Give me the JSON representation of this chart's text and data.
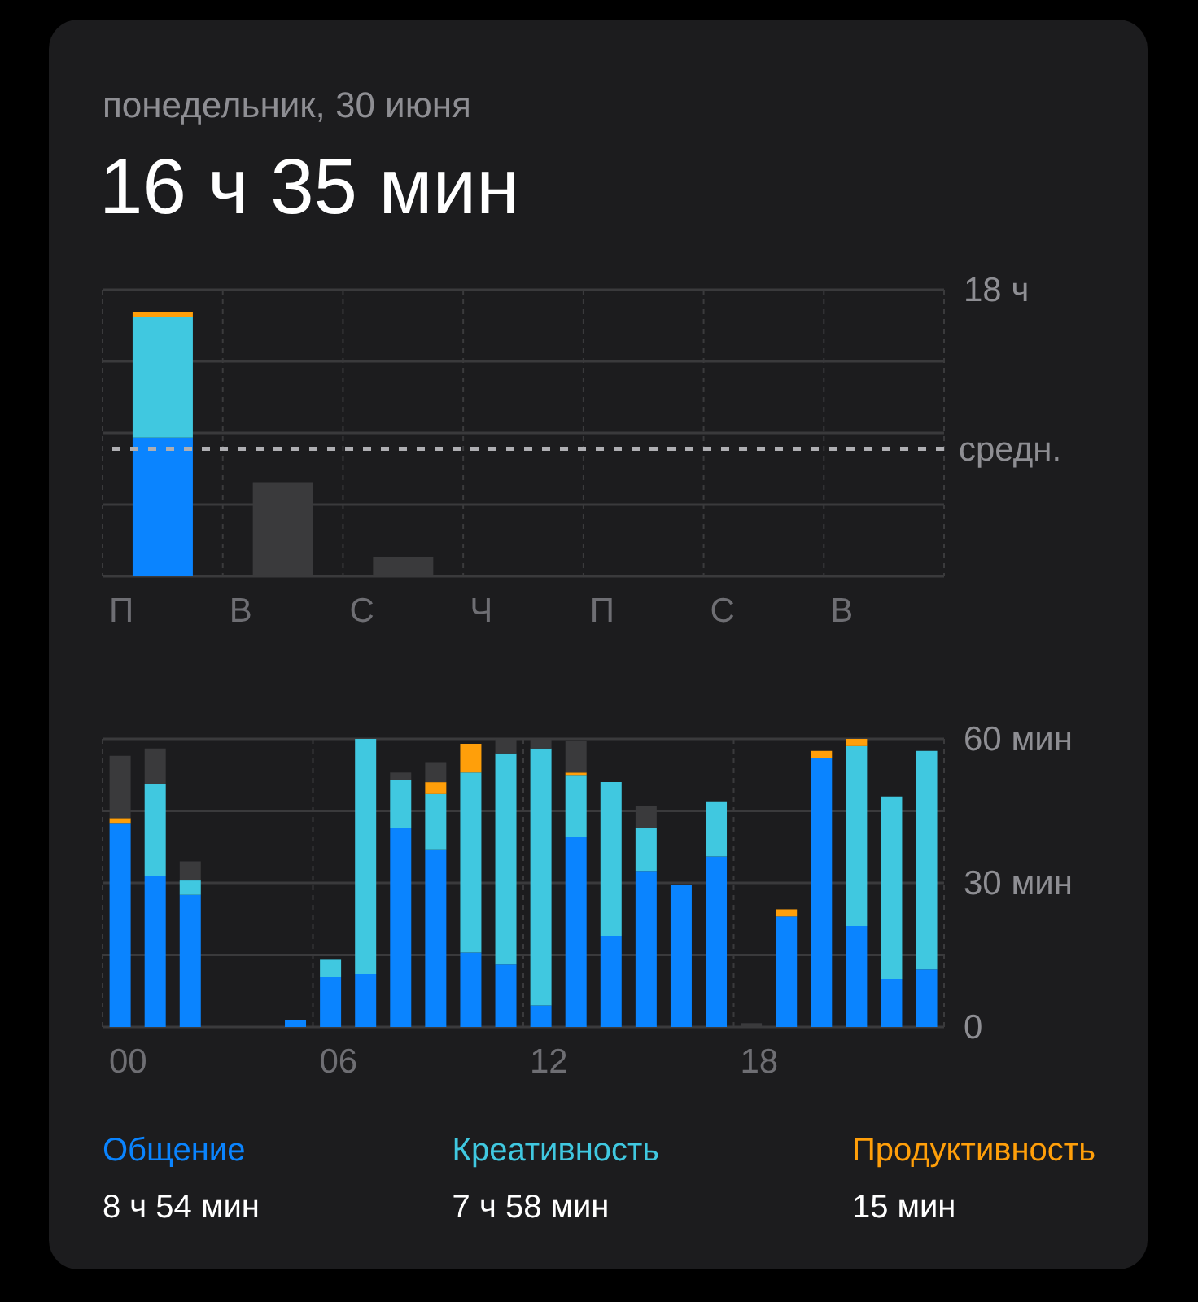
{
  "chart_data": [
    {
      "type": "bar",
      "subtitle": "понедельник, 30 июня",
      "title": "16 ч 35 мин",
      "stacked": true,
      "categories": [
        "П",
        "В",
        "С",
        "Ч",
        "П",
        "С",
        "В"
      ],
      "series": [
        {
          "color": "#0a84ff",
          "values": [
            8.7,
            0,
            0,
            0,
            0,
            0,
            0
          ]
        },
        {
          "color": "#40c8e0",
          "values": [
            7.6,
            0,
            0,
            0,
            0,
            0,
            0
          ]
        },
        {
          "color": "#ff9f0a",
          "values": [
            0.3,
            0,
            0,
            0,
            0,
            0,
            0
          ]
        },
        {
          "color": "#3a3a3c",
          "values": [
            0,
            5.9,
            1.2,
            0,
            0,
            0,
            0
          ]
        }
      ],
      "ylim": [
        0,
        18
      ],
      "yticks": [
        0,
        {
          "value": 4.5,
          "label": null
        },
        {
          "value": 9,
          "label": null
        },
        {
          "value": 13.5,
          "label": null
        },
        {
          "value": 18,
          "label": "18 ч"
        }
      ],
      "ref_lines": [
        {
          "axis": "y",
          "value": 8,
          "label": "средн.",
          "line_style": "dashed",
          "color": "#aeaeb2"
        }
      ],
      "grid": true
    },
    {
      "type": "bar",
      "stacked": true,
      "categories": [
        "00",
        null,
        null,
        null,
        null,
        null,
        "06",
        null,
        null,
        null,
        null,
        null,
        "12",
        null,
        null,
        null,
        null,
        null,
        "18",
        null,
        null,
        null,
        null,
        null
      ],
      "series": [
        {
          "name": "Общение",
          "color": "#0a84ff",
          "values": [
            42.5,
            31.5,
            27.5,
            0,
            0,
            1.5,
            10.5,
            11,
            41.5,
            37,
            15.5,
            13,
            4.5,
            39.5,
            19,
            32.5,
            29.5,
            35.5,
            0,
            23,
            56,
            21,
            10,
            12
          ]
        },
        {
          "name": "Креативность",
          "color": "#40c8e0",
          "values": [
            0,
            19,
            3,
            0,
            0,
            0,
            3.5,
            49,
            10,
            11.5,
            37.5,
            44,
            53.5,
            13,
            32,
            9,
            0,
            11.5,
            0,
            0,
            0,
            37.5,
            38,
            45.5
          ]
        },
        {
          "name": "Продуктивность",
          "color": "#ff9f0a",
          "values": [
            1,
            0,
            0,
            0,
            0,
            0,
            0,
            0,
            0,
            2.5,
            6,
            0,
            0,
            0.5,
            0,
            0,
            0,
            0,
            0,
            1.5,
            1.5,
            1.5,
            0,
            0
          ]
        },
        {
          "color": "#3a3a3c",
          "values": [
            13,
            7.5,
            4,
            0,
            0,
            0,
            0,
            0,
            1.5,
            4,
            0,
            3,
            2,
            6.5,
            0,
            4.5,
            0,
            0,
            0.8,
            0,
            0,
            0,
            0,
            0
          ]
        }
      ],
      "ylim": [
        0,
        60
      ],
      "yticks": [
        {
          "value": 0,
          "label": "0"
        },
        {
          "value": 15,
          "label": null
        },
        {
          "value": 30,
          "label": "30 мин"
        },
        {
          "value": 45,
          "label": null
        },
        {
          "value": 60,
          "label": "60 мин"
        }
      ],
      "annotations": [
        "8 ч 54 мин",
        "7 ч 58 мин",
        "15 мин"
      ],
      "grid": true,
      "legend": "bottom"
    }
  ]
}
